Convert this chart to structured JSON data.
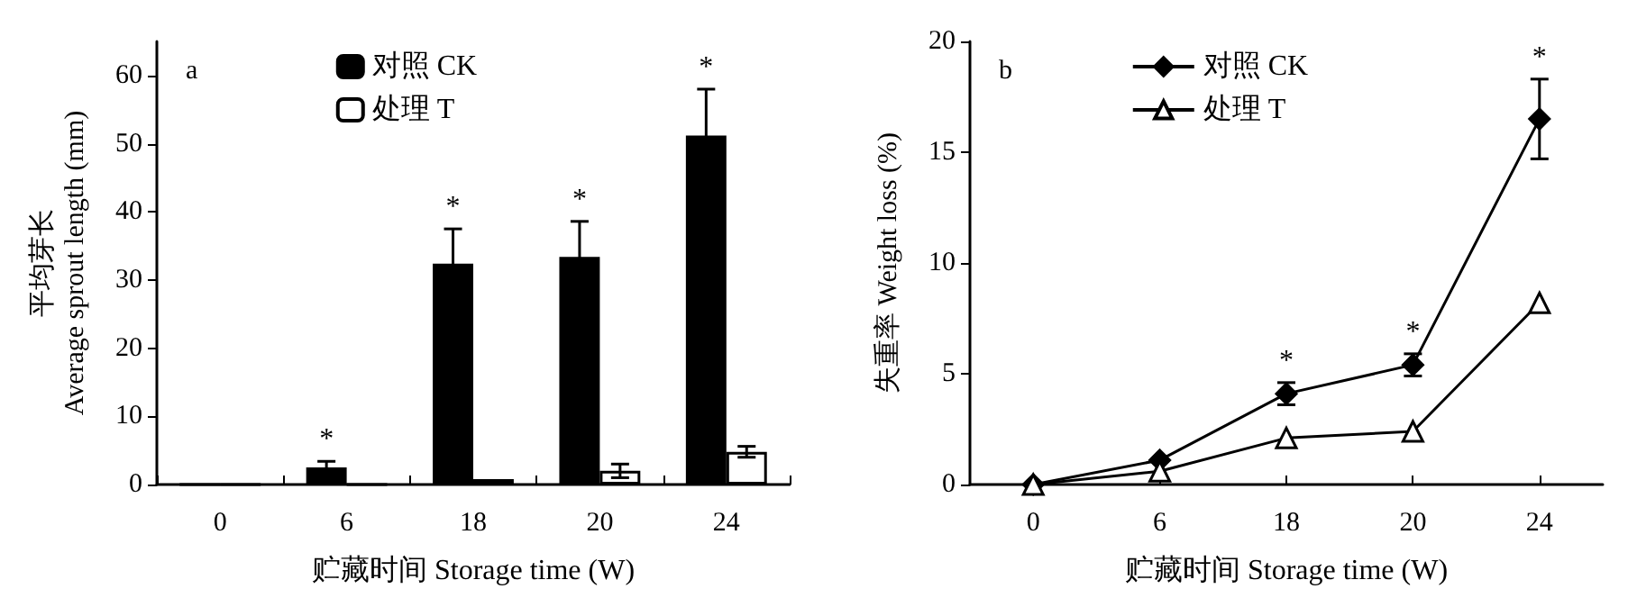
{
  "chart_data": [
    {
      "type": "bar",
      "xlabel": "贮藏时间 Storage time (W)",
      "ylabel": "平均芽长\nAverage sprout length (mm)",
      "categories": [
        "0",
        "6",
        "18",
        "20",
        "24"
      ],
      "series": [
        {
          "name": "对照 CK",
          "color": "#000000",
          "values": [
            0,
            2.5,
            32.4,
            33.4,
            51.2
          ],
          "errors": [
            null,
            0.9,
            5.1,
            5.2,
            6.8
          ]
        },
        {
          "name": "处理 T",
          "color": "#ffffff",
          "values": [
            0,
            0,
            0.8,
            2.0,
            4.8
          ],
          "errors": [
            null,
            null,
            null,
            1.0,
            0.8
          ]
        }
      ],
      "ylim": [
        0,
        65
      ],
      "yticks": [
        0,
        10,
        20,
        30,
        40,
        50,
        60
      ],
      "grid": false,
      "legend": "top",
      "annotations": [
        "a",
        {
          "text": "*",
          "x": "6",
          "y": 3.4
        },
        {
          "text": "*",
          "x": "18",
          "y": 32.4
        },
        {
          "text": "*",
          "x": "20",
          "y": 33.4
        },
        {
          "text": "*",
          "x": "24",
          "y": 51.2
        }
      ]
    },
    {
      "type": "line",
      "xlabel": "贮藏时间 Storage time (W)",
      "ylabel": "失重率 Weight loss (%)",
      "categories": [
        "0",
        "6",
        "18",
        "20",
        "24"
      ],
      "series": [
        {
          "name": "对照 CK",
          "color": "#000000",
          "marker": "diamond",
          "values": [
            0,
            1.1,
            4.1,
            5.4,
            16.5
          ],
          "errors": [
            null,
            null,
            0.5,
            0.5,
            1.8
          ]
        },
        {
          "name": "处理 T",
          "color": "#000000",
          "marker": "triangle",
          "values": [
            0,
            0.6,
            2.1,
            2.4,
            8.2
          ]
        }
      ],
      "ylim": [
        0,
        20
      ],
      "yticks": [
        0,
        5,
        10,
        15,
        20
      ],
      "grid": false,
      "legend": "top",
      "annotations": [
        "b",
        {
          "text": "*",
          "x": "18",
          "y": 4.6
        },
        {
          "text": "*",
          "x": "20",
          "y": 5.9
        },
        {
          "text": "*",
          "x": "24",
          "y": 18.3
        }
      ]
    }
  ]
}
